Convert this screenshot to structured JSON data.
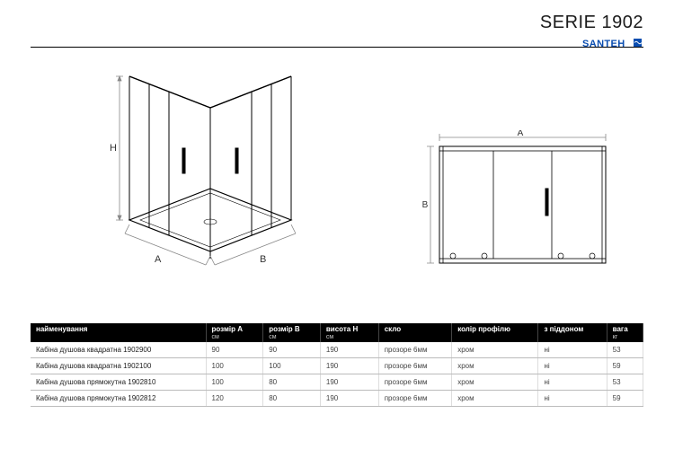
{
  "header": {
    "title": "SERIE 1902",
    "brand_text": "SANTEH",
    "brand_color": "#0a4db0"
  },
  "diagrams": {
    "stroke": "#000000",
    "guide_stroke": "#888888",
    "labels": {
      "H": "H",
      "A": "A",
      "B": "B"
    },
    "label_fontsize": 11
  },
  "table": {
    "header_bg": "#000000",
    "header_fg": "#ffffff",
    "row_border": "#bbbbbb",
    "columns": [
      {
        "label": "найменування",
        "unit": ""
      },
      {
        "label": "розмір A",
        "unit": "см"
      },
      {
        "label": "розмір B",
        "unit": "см"
      },
      {
        "label": "висота H",
        "unit": "см"
      },
      {
        "label": "скло",
        "unit": ""
      },
      {
        "label": "колір профілю",
        "unit": ""
      },
      {
        "label": "з піддоном",
        "unit": ""
      },
      {
        "label": "вага",
        "unit": "кг"
      }
    ],
    "rows": [
      [
        "Кабіна душова квадратна 1902900",
        "90",
        "90",
        "190",
        "прозоре 6мм",
        "хром",
        "ні",
        "53"
      ],
      [
        "Кабіна душова квадратна 1902100",
        "100",
        "100",
        "190",
        "прозоре 6мм",
        "хром",
        "ні",
        "59"
      ],
      [
        "Кабіна душова прямокутна 1902810",
        "100",
        "80",
        "190",
        "прозоре 6мм",
        "хром",
        "ні",
        "53"
      ],
      [
        "Кабіна душова прямокутна 1902812",
        "120",
        "80",
        "190",
        "прозоре 6мм",
        "хром",
        "ні",
        "59"
      ]
    ]
  }
}
